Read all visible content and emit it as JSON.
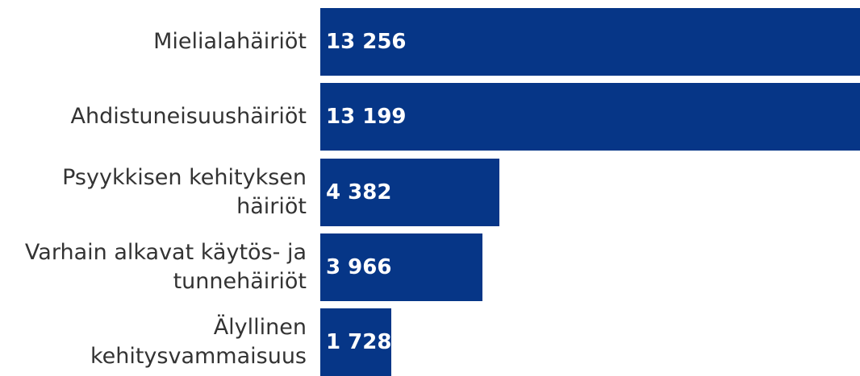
{
  "chart_data": {
    "type": "bar",
    "orientation": "horizontal",
    "categories": [
      "Mielialahäiriöt",
      "Ahdistuneisuushäiriöt",
      "Psyykkisen kehityksen häiriöt",
      "Varhain alkavat käytös- ja tunnehäiriöt",
      "Älyllinen kehitysvammaisuus"
    ],
    "values": [
      13256,
      13199,
      4382,
      3966,
      1728
    ],
    "value_labels": [
      "13 256",
      "13 199",
      "4 382",
      "3 966",
      "1 728"
    ],
    "color": "#063687"
  }
}
